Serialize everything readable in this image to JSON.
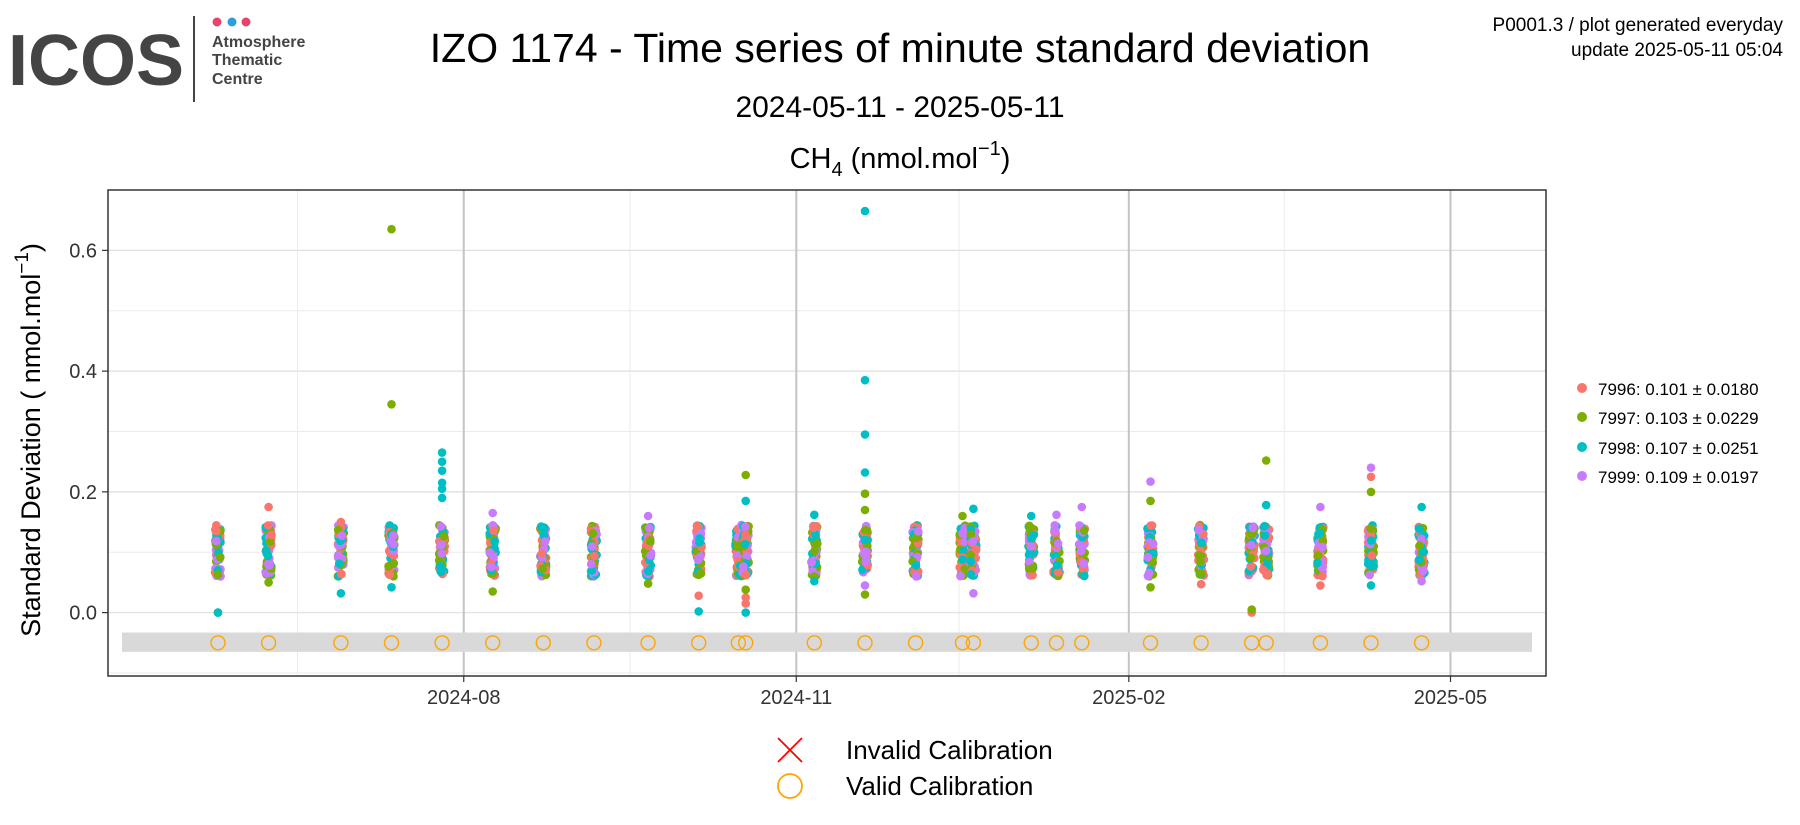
{
  "logo": {
    "brand": "ICOS",
    "subtitle_lines": [
      "Atmosphere",
      "Thematic",
      "Centre"
    ],
    "dot_colors": [
      "#e5446d",
      "#2a9fd8",
      "#e5446d"
    ]
  },
  "header": {
    "title": "IZO 1174 - Time series of minute standard deviation",
    "date_range": "2024-05-11 - 2025-05-11",
    "species": "CH",
    "species_sub": "4",
    "species_unit_pre": " (nmol.mol",
    "species_unit_sup": "−1",
    "species_unit_post": ")",
    "info_line1": "P0001.3 / plot generated everyday",
    "info_line2": "update  2025-05-11 05:04"
  },
  "chart_data": {
    "type": "scatter",
    "ylabel_pre": "Standard Deviation ( nmol.mol",
    "ylabel_sup": "−1",
    "ylabel_post": ")",
    "xlim": [
      "2024-05-11",
      "2025-05-11"
    ],
    "ylim": [
      -0.105,
      0.7
    ],
    "x_ticks": [
      "2024-08-01",
      "2024-11-01",
      "2025-02-01",
      "2025-05-01"
    ],
    "x_tick_labels": [
      "2024-08",
      "2024-11",
      "2025-02",
      "2025-05"
    ],
    "y_ticks": [
      0.0,
      0.2,
      0.4,
      0.6
    ],
    "y_tick_labels": [
      "0.0",
      "0.2",
      "0.4",
      "0.6"
    ],
    "grid": true,
    "legend_position": "right",
    "series": [
      {
        "name": "7996: 0.101 ± 0.0180",
        "color": "#f8766d"
      },
      {
        "name": "7997: 0.103 ± 0.0229",
        "color": "#7cae00"
      },
      {
        "name": "7998: 0.107 ± 0.0251",
        "color": "#00bfc4"
      },
      {
        "name": "7999: 0.109 ± 0.0197",
        "color": "#c77cff"
      }
    ],
    "calibration_sessions": [
      "2024-05-25",
      "2024-06-08",
      "2024-06-28",
      "2024-07-12",
      "2024-07-26",
      "2024-08-09",
      "2024-08-23",
      "2024-09-06",
      "2024-09-21",
      "2024-10-05",
      "2024-10-16",
      "2024-10-18",
      "2024-11-06",
      "2024-11-20",
      "2024-12-04",
      "2024-12-17",
      "2024-12-20",
      "2025-01-05",
      "2025-01-12",
      "2025-01-19",
      "2025-02-07",
      "2025-02-21",
      "2025-03-07",
      "2025-03-11",
      "2025-03-26",
      "2025-04-09",
      "2025-04-23"
    ],
    "valid_calibration_y": -0.05,
    "valid_calibration_band": [
      -0.065,
      -0.033
    ],
    "outliers": [
      {
        "date": "2024-05-25",
        "series": 1,
        "y": 0.0
      },
      {
        "date": "2024-05-25",
        "series": 2,
        "y": 0.0
      },
      {
        "date": "2024-05-25",
        "series": 1,
        "y": 0.063
      },
      {
        "date": "2024-06-08",
        "series": 0,
        "y": 0.175
      },
      {
        "date": "2024-06-08",
        "series": 1,
        "y": 0.05
      },
      {
        "date": "2024-06-28",
        "series": 2,
        "y": 0.032
      },
      {
        "date": "2024-06-28",
        "series": 0,
        "y": 0.15
      },
      {
        "date": "2024-07-12",
        "series": 1,
        "y": 0.635
      },
      {
        "date": "2024-07-12",
        "series": 1,
        "y": 0.345
      },
      {
        "date": "2024-07-12",
        "series": 2,
        "y": 0.042
      },
      {
        "date": "2024-07-26",
        "series": 2,
        "y": 0.265
      },
      {
        "date": "2024-07-26",
        "series": 2,
        "y": 0.25
      },
      {
        "date": "2024-07-26",
        "series": 2,
        "y": 0.235
      },
      {
        "date": "2024-07-26",
        "series": 2,
        "y": 0.215
      },
      {
        "date": "2024-07-26",
        "series": 2,
        "y": 0.205
      },
      {
        "date": "2024-07-26",
        "series": 2,
        "y": 0.19
      },
      {
        "date": "2024-08-09",
        "series": 1,
        "y": 0.035
      },
      {
        "date": "2024-08-09",
        "series": 3,
        "y": 0.165
      },
      {
        "date": "2024-09-21",
        "series": 3,
        "y": 0.16
      },
      {
        "date": "2024-09-21",
        "series": 1,
        "y": 0.048
      },
      {
        "date": "2024-10-05",
        "series": 0,
        "y": 0.028
      },
      {
        "date": "2024-10-05",
        "series": 2,
        "y": 0.002
      },
      {
        "date": "2024-10-18",
        "series": 1,
        "y": 0.228
      },
      {
        "date": "2024-10-18",
        "series": 2,
        "y": 0.185
      },
      {
        "date": "2024-10-18",
        "series": 0,
        "y": 0.025
      },
      {
        "date": "2024-10-18",
        "series": 0,
        "y": 0.015
      },
      {
        "date": "2024-10-18",
        "series": 2,
        "y": 0.0
      },
      {
        "date": "2024-10-18",
        "series": 1,
        "y": 0.038
      },
      {
        "date": "2024-11-06",
        "series": 2,
        "y": 0.162
      },
      {
        "date": "2024-11-06",
        "series": 2,
        "y": 0.052
      },
      {
        "date": "2024-11-20",
        "series": 2,
        "y": 0.665
      },
      {
        "date": "2024-11-20",
        "series": 2,
        "y": 0.385
      },
      {
        "date": "2024-11-20",
        "series": 2,
        "y": 0.295
      },
      {
        "date": "2024-11-20",
        "series": 2,
        "y": 0.232
      },
      {
        "date": "2024-11-20",
        "series": 1,
        "y": 0.197
      },
      {
        "date": "2024-11-20",
        "series": 1,
        "y": 0.17
      },
      {
        "date": "2024-11-20",
        "series": 1,
        "y": 0.03
      },
      {
        "date": "2024-11-20",
        "series": 3,
        "y": 0.045
      },
      {
        "date": "2024-12-17",
        "series": 1,
        "y": 0.16
      },
      {
        "date": "2024-12-20",
        "series": 2,
        "y": 0.172
      },
      {
        "date": "2024-12-20",
        "series": 3,
        "y": 0.032
      },
      {
        "date": "2025-01-05",
        "series": 2,
        "y": 0.16
      },
      {
        "date": "2025-01-12",
        "series": 3,
        "y": 0.162
      },
      {
        "date": "2025-01-19",
        "series": 3,
        "y": 0.175
      },
      {
        "date": "2025-02-07",
        "series": 3,
        "y": 0.217
      },
      {
        "date": "2025-02-07",
        "series": 1,
        "y": 0.185
      },
      {
        "date": "2025-02-07",
        "series": 1,
        "y": 0.042
      },
      {
        "date": "2025-02-21",
        "series": 0,
        "y": 0.047
      },
      {
        "date": "2025-03-07",
        "series": 0,
        "y": 0.0
      },
      {
        "date": "2025-03-07",
        "series": 1,
        "y": 0.005
      },
      {
        "date": "2025-03-11",
        "series": 1,
        "y": 0.252
      },
      {
        "date": "2025-03-11",
        "series": 2,
        "y": 0.178
      },
      {
        "date": "2025-03-26",
        "series": 0,
        "y": 0.045
      },
      {
        "date": "2025-03-26",
        "series": 3,
        "y": 0.175
      },
      {
        "date": "2025-04-09",
        "series": 3,
        "y": 0.24
      },
      {
        "date": "2025-04-09",
        "series": 0,
        "y": 0.225
      },
      {
        "date": "2025-04-09",
        "series": 1,
        "y": 0.2
      },
      {
        "date": "2025-04-09",
        "series": 2,
        "y": 0.045
      },
      {
        "date": "2025-04-23",
        "series": 2,
        "y": 0.175
      },
      {
        "date": "2025-04-23",
        "series": 3,
        "y": 0.052
      }
    ]
  },
  "bottom_legend": {
    "items": [
      {
        "label": "Invalid Calibration",
        "color": "#ff0000",
        "symbol": "cross"
      },
      {
        "label": "Valid Calibration",
        "color": "#ffa500",
        "symbol": "open-circle"
      }
    ]
  }
}
